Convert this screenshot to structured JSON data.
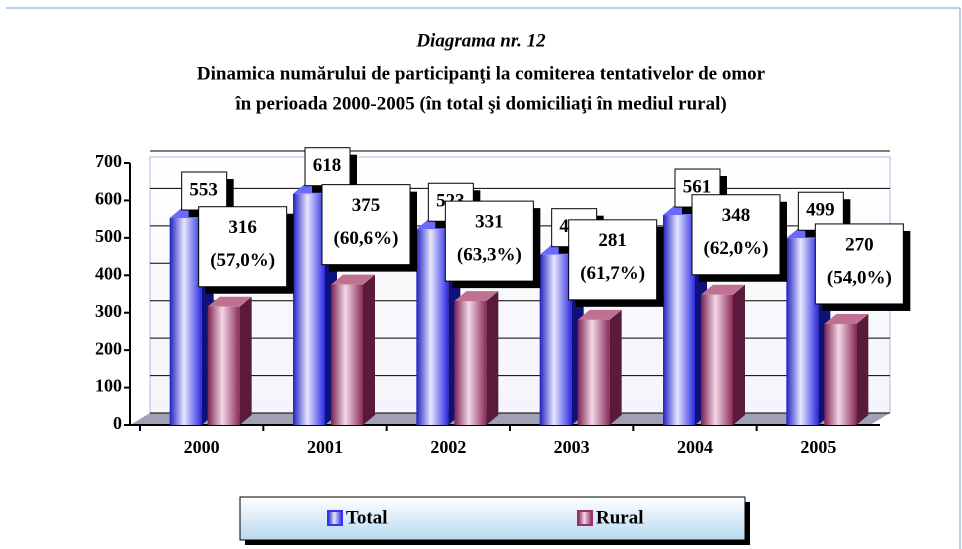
{
  "chart_data": {
    "type": "bar",
    "subtitle": "Diagrama nr. 12",
    "title": [
      "Dinamica numărului de participanţi la comiterea tentativelor de omor",
      "în perioada 2000-2005 (în total şi domiciliaţi în mediul rural)"
    ],
    "categories": [
      "2000",
      "2001",
      "2002",
      "2003",
      "2004",
      "2005"
    ],
    "series": [
      {
        "name": "Total",
        "color": "#3333ff",
        "values": [
          553,
          618,
          523,
          455,
          561,
          499
        ]
      },
      {
        "name": "Rural",
        "color": "#993366",
        "values": [
          316,
          375,
          331,
          281,
          348,
          270
        ],
        "percent_labels": [
          "(57,0%)",
          "(60,6%)",
          "(63,3%)",
          "(61,7%)",
          "(62,0%)",
          "(54,0%)"
        ]
      }
    ],
    "ylim": [
      0,
      700
    ],
    "yticks": [
      0,
      100,
      200,
      300,
      400,
      500,
      600,
      700
    ],
    "grid": true,
    "legend": "bottom"
  }
}
